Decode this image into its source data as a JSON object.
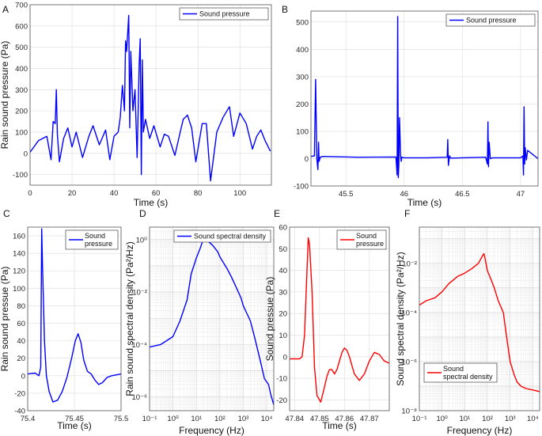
{
  "chart_data": [
    {
      "panel": "A",
      "type": "line",
      "xlabel": "Time (s)",
      "ylabel": "Rain sound pressure (Pa)",
      "xlim": [
        0,
        115
      ],
      "ylim": [
        -150,
        700
      ],
      "xticks": [
        "0",
        "20",
        "40",
        "60",
        "80",
        "100"
      ],
      "yticks": [
        "-100",
        "0",
        "100",
        "200",
        "300",
        "400",
        "500",
        "600",
        "700"
      ],
      "scale": "linear",
      "grid": true,
      "legend": "top-right",
      "series": [
        {
          "name": "Sound pressure",
          "color": "#0000ff",
          "x": [
            0,
            4,
            8,
            10,
            11,
            12,
            12.5,
            13,
            14,
            16,
            18,
            20,
            22,
            25,
            28,
            30,
            33,
            36,
            38,
            40,
            42,
            43,
            44,
            45,
            45.5,
            46,
            47,
            47.5,
            48,
            49,
            50,
            51,
            52,
            52.5,
            53,
            53.5,
            54,
            55,
            57,
            59,
            62,
            64,
            66,
            69,
            72,
            73,
            75,
            77,
            79,
            82,
            84,
            86,
            89,
            92,
            95,
            97,
            100,
            103,
            106,
            108,
            110,
            112,
            114.5
          ],
          "y": [
            5,
            60,
            80,
            -30,
            150,
            140,
            300,
            90,
            -40,
            70,
            120,
            30,
            100,
            -20,
            80,
            130,
            40,
            110,
            -30,
            80,
            100,
            170,
            320,
            200,
            530,
            480,
            650,
            120,
            480,
            200,
            300,
            -20,
            420,
            540,
            -100,
            440,
            100,
            160,
            70,
            130,
            30,
            90,
            80,
            -10,
            120,
            160,
            180,
            120,
            -40,
            140,
            140,
            -130,
            100,
            170,
            220,
            80,
            190,
            140,
            20,
            80,
            110,
            60,
            10
          ]
        }
      ]
    },
    {
      "panel": "B",
      "type": "line",
      "xlabel": "Time (s)",
      "ylabel": "",
      "xlim": [
        45.2,
        47.15
      ],
      "ylim": [
        -100,
        540
      ],
      "xticks": [
        "45.5",
        "46",
        "46.5",
        "47"
      ],
      "yticks": [
        "-100",
        "0",
        "100",
        "200",
        "300",
        "400",
        "500"
      ],
      "scale": "linear",
      "grid": true,
      "legend": "top-right",
      "series": [
        {
          "name": "Sound pressure",
          "color": "#0000ff",
          "x": [
            45.2,
            45.23,
            45.24,
            45.25,
            45.26,
            45.265,
            45.27,
            45.28,
            45.3,
            45.6,
            45.93,
            45.94,
            45.945,
            45.95,
            45.955,
            45.96,
            45.97,
            45.975,
            45.98,
            46,
            46.2,
            46.37,
            46.375,
            46.38,
            46.39,
            46.4,
            46.7,
            46.715,
            46.72,
            46.725,
            46.73,
            46.74,
            46.76,
            47,
            47.02,
            47.025,
            47.03,
            47.035,
            47.04,
            47.05,
            47.06,
            47.15
          ],
          "y": [
            8,
            10,
            290,
            0,
            -40,
            60,
            -10,
            5,
            8,
            5,
            6,
            -60,
            520,
            -70,
            -20,
            150,
            10,
            -10,
            5,
            3,
            3,
            5,
            70,
            -25,
            10,
            2,
            5,
            -20,
            135,
            -30,
            60,
            0,
            3,
            3,
            10,
            -60,
            190,
            -20,
            40,
            -5,
            30,
            0
          ]
        }
      ]
    },
    {
      "panel": "C",
      "type": "line",
      "xlabel": "Time (s)",
      "ylabel": "Rain sound pressue (Pa)",
      "xlim": [
        75.4,
        75.5
      ],
      "ylim": [
        -40,
        170
      ],
      "xticks": [
        "75.4",
        "75.45",
        "75.5"
      ],
      "yticks": [
        "-40",
        "-20",
        "0",
        "20",
        "40",
        "60",
        "80",
        "100",
        "120",
        "140",
        "160"
      ],
      "scale": "linear",
      "grid": true,
      "legend": "top-right",
      "series": [
        {
          "name": "Sound pressure",
          "color": "#0000ff",
          "x": [
            75.4,
            75.408,
            75.412,
            75.414,
            75.415,
            75.416,
            75.418,
            75.42,
            75.423,
            75.427,
            75.432,
            75.437,
            75.442,
            75.447,
            75.451,
            75.454,
            75.457,
            75.46,
            75.464,
            75.468,
            75.472,
            75.476,
            75.48,
            75.485,
            75.49,
            75.495,
            75.5
          ],
          "y": [
            2,
            3,
            0,
            10,
            168,
            120,
            40,
            0,
            -18,
            -30,
            -28,
            -18,
            -2,
            20,
            40,
            48,
            38,
            18,
            5,
            2,
            -5,
            -10,
            -8,
            -2,
            0,
            1,
            2
          ]
        }
      ]
    },
    {
      "panel": "D",
      "type": "line",
      "xlabel": "Frequency (Hz)",
      "ylabel": "Rain sound spectral density (Pa²/Hz)",
      "xlim": [
        0.1,
        20000
      ],
      "ylim": [
        3e-07,
        3
      ],
      "xticks": [
        "10⁻¹",
        "10⁰",
        "10¹",
        "10²",
        "10³",
        "10⁴"
      ],
      "yticks": [
        "10⁻⁶",
        "10⁻⁴",
        "10⁻²",
        "10⁰"
      ],
      "scale": "loglog",
      "grid": true,
      "legend": "top-right",
      "series": [
        {
          "name": "Sound spectral density",
          "color": "#0000ff",
          "x": [
            0.1,
            0.3,
            1,
            2,
            4,
            6,
            10,
            15,
            20,
            30,
            50,
            80,
            100,
            200,
            300,
            500,
            800,
            1000,
            2000,
            3000,
            5000,
            8000,
            12000,
            15000,
            20000
          ],
          "y": [
            8e-05,
            0.0001,
            0.0002,
            0.0008,
            0.005,
            0.05,
            0.2,
            0.5,
            1.1,
            0.9,
            0.6,
            0.35,
            0.22,
            0.08,
            0.04,
            0.015,
            0.006,
            0.003,
            0.0008,
            0.0002,
            3e-05,
            5e-06,
            3e-06,
            1.2e-06,
            5e-07
          ]
        }
      ]
    },
    {
      "panel": "E",
      "type": "line",
      "xlabel": "Time (s)",
      "ylabel": "Sound pressue (Pa)",
      "xlim": [
        47.838,
        47.878
      ],
      "ylim": [
        -25,
        60
      ],
      "xticks": [
        "47.84",
        "47.85",
        "47.86",
        "47.87"
      ],
      "yticks": [
        "-20",
        "-10",
        "0",
        "10",
        "20",
        "30",
        "40",
        "50",
        "60"
      ],
      "scale": "linear",
      "grid": true,
      "legend": "top-right",
      "series": [
        {
          "name": "Sound pressure",
          "color": "#ff0000",
          "x": [
            47.838,
            47.84,
            47.842,
            47.843,
            47.844,
            47.845,
            47.8455,
            47.846,
            47.847,
            47.848,
            47.849,
            47.8505,
            47.852,
            47.853,
            47.854,
            47.855,
            47.856,
            47.857,
            47.858,
            47.859,
            47.86,
            47.861,
            47.862,
            47.863,
            47.864,
            47.866,
            47.868,
            47.87,
            47.872,
            47.874,
            47.876,
            47.878
          ],
          "y": [
            -1,
            -1,
            -1,
            0,
            10,
            40,
            55,
            52,
            30,
            -5,
            -18,
            -21,
            -14,
            -9,
            -6,
            -6,
            -8,
            -6,
            -2,
            2,
            4,
            3,
            0,
            -4,
            -8,
            -11,
            -8,
            -2,
            2,
            1,
            -2,
            -3
          ]
        }
      ]
    },
    {
      "panel": "F",
      "type": "line",
      "xlabel": "Frequency (Hz)",
      "ylabel": "Sound spectral density (Pa²/Hz)",
      "xlim": [
        0.1,
        20000
      ],
      "ylim": [
        1e-08,
        0.3
      ],
      "xticks": [
        "10⁻¹",
        "10⁰",
        "10¹",
        "10²",
        "10³",
        "10⁴"
      ],
      "yticks": [
        "10⁻⁸",
        "10⁻⁶",
        "10⁻⁴",
        "10⁻²"
      ],
      "scale": "loglog",
      "grid": true,
      "legend": "bottom-right",
      "series": [
        {
          "name": "Sound spectral density",
          "color": "#ff0000",
          "x": [
            0.1,
            0.2,
            0.5,
            1,
            2,
            5,
            10,
            20,
            40,
            60,
            70,
            80,
            100,
            150,
            200,
            300,
            500,
            700,
            1000,
            1500,
            2000,
            3000,
            5000,
            10000,
            20000
          ],
          "y": [
            0.0002,
            0.0003,
            0.0004,
            0.0007,
            0.0015,
            0.003,
            0.004,
            0.006,
            0.01,
            0.02,
            0.025,
            0.015,
            0.005,
            0.002,
            0.001,
            0.0003,
            0.0001,
            1e-05,
            1e-06,
            3e-07,
            1.5e-07,
            1e-07,
            8e-08,
            7e-08,
            6e-08
          ]
        }
      ]
    }
  ]
}
